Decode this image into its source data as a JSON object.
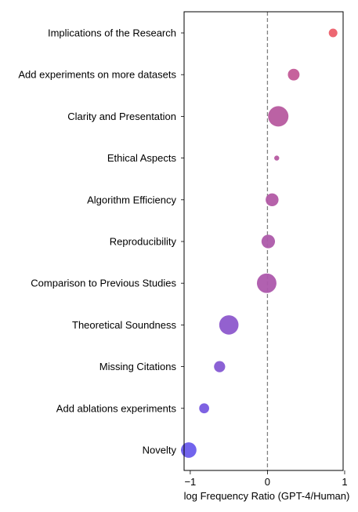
{
  "chart_data": {
    "type": "scatter",
    "title": "",
    "xlabel": "log Frequency Ratio (GPT-4/Human)",
    "ylabel": "",
    "xlim": [
      -1.08,
      0.98
    ],
    "xticks": [
      {
        "value": -1,
        "label": "−1"
      },
      {
        "value": 0,
        "label": "0"
      },
      {
        "value": 1,
        "label": "1"
      }
    ],
    "reference_line": {
      "x": 0,
      "style": "dashed",
      "color": "#808080"
    },
    "grid": false,
    "legend": "none",
    "color_scale": {
      "low": "#5b5cf2",
      "mid": "#b257b5",
      "high": "#f25c5c"
    },
    "size_note": "marker area encodes relative frequency",
    "points": [
      {
        "category": "Implications of the Research",
        "x": 0.85,
        "size": 0.18,
        "color": "#ec5f6a"
      },
      {
        "category": "Add experiments on more datasets",
        "x": 0.34,
        "size": 0.33,
        "color": "#c35a97"
      },
      {
        "category": "Clarity and Presentation",
        "x": 0.14,
        "size": 1.0,
        "color": "#b75a9f"
      },
      {
        "category": "Ethical Aspects",
        "x": 0.12,
        "size": 0.06,
        "color": "#b65aa1"
      },
      {
        "category": "Algorithm Efficiency",
        "x": 0.06,
        "size": 0.4,
        "color": "#b25aa5"
      },
      {
        "category": "Reproducibility",
        "x": 0.01,
        "size": 0.44,
        "color": "#ad5aaa"
      },
      {
        "category": "Comparison to Previous Studies",
        "x": -0.01,
        "size": 0.92,
        "color": "#ad59ac"
      },
      {
        "category": "Theoretical Soundness",
        "x": -0.5,
        "size": 0.9,
        "color": "#8d58cc"
      },
      {
        "category": "Missing Citations",
        "x": -0.62,
        "size": 0.3,
        "color": "#8558d3"
      },
      {
        "category": "Add ablations experiments",
        "x": -0.82,
        "size": 0.24,
        "color": "#775ae0"
      },
      {
        "category": "Novelty",
        "x": -1.02,
        "size": 0.58,
        "color": "#6a5cec"
      }
    ]
  }
}
